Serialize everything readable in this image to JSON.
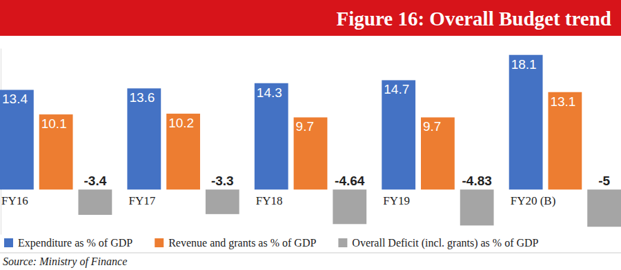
{
  "chart_data": {
    "type": "bar",
    "title": "Figure 16: Overall Budget trend",
    "categories": [
      "FY16",
      "FY17",
      "FY18",
      "FY19",
      "FY20 (B)"
    ],
    "series": [
      {
        "name": "Expenditure as % of GDP",
        "color": "#4472c4",
        "values": [
          13.4,
          13.6,
          14.3,
          14.7,
          18.1
        ]
      },
      {
        "name": "Revenue and grants as % of GDP",
        "color": "#ed7d31",
        "values": [
          10.1,
          10.2,
          9.7,
          9.7,
          13.1
        ]
      },
      {
        "name": "Overall Deficit (incl. grants) as % of GDP",
        "color": "#a5a5a5",
        "values": [
          -3.4,
          -3.3,
          -4.64,
          -4.83,
          -5
        ]
      }
    ],
    "ylim": [
      -6,
      19
    ],
    "yticks": [],
    "tick_labels": "x",
    "data_labels": true,
    "legend": "bottom",
    "source": "Source: Ministry of Finance"
  }
}
